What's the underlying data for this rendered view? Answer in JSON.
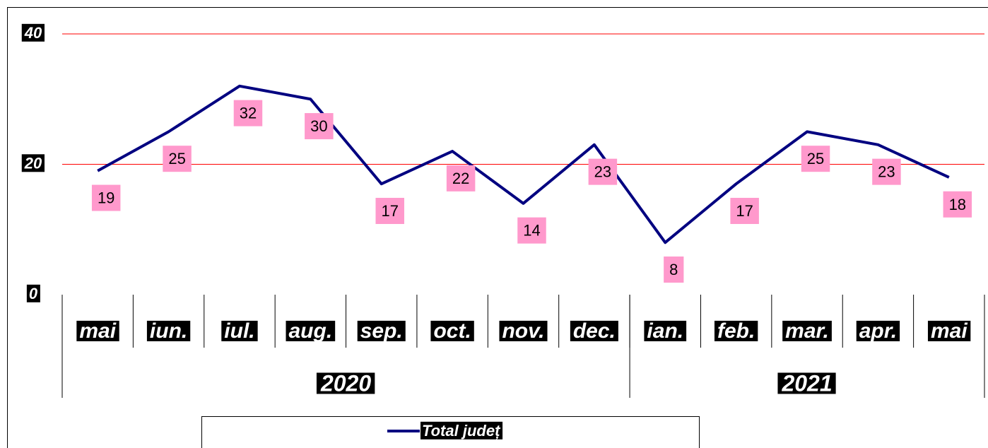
{
  "chart_data": {
    "type": "line",
    "categories": [
      "mai",
      "iun.",
      "iul.",
      "aug.",
      "sep.",
      "oct.",
      "nov.",
      "dec.",
      "ian.",
      "feb.",
      "mar.",
      "apr.",
      "mai"
    ],
    "category_groups": [
      {
        "label": "2020",
        "span": 8
      },
      {
        "label": "2021",
        "span": 5
      }
    ],
    "series": [
      {
        "name": "Total județ",
        "color": "#000080",
        "values": [
          19,
          25,
          32,
          30,
          17,
          22,
          14,
          23,
          8,
          17,
          25,
          23,
          18
        ]
      }
    ],
    "ylim": [
      0,
      40
    ],
    "yticks": [
      0,
      20,
      40
    ],
    "grid": true,
    "grid_color": "#ff0000",
    "label_color": "#ff99cc",
    "legend": "bottom"
  }
}
